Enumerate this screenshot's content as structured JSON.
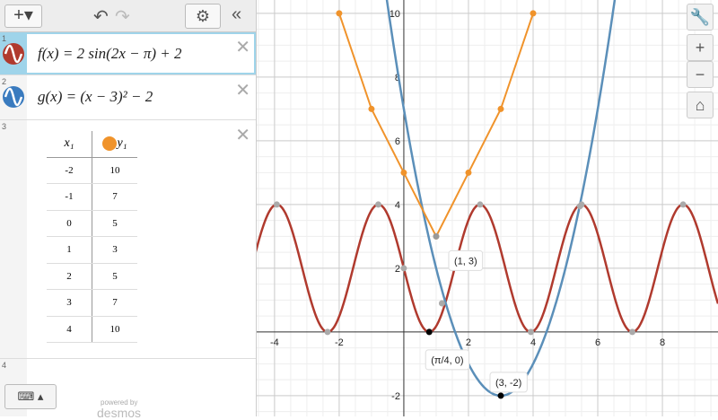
{
  "expressions": [
    {
      "index": "1",
      "text": "f(x) = 2 sin(2x − π) + 2"
    },
    {
      "index": "2",
      "text": "g(x) = (x − 3)² − 2"
    }
  ],
  "table": {
    "index": "3",
    "headers": [
      "x₁",
      "y₁"
    ],
    "x": [
      -2,
      -1,
      0,
      1,
      2,
      3,
      4
    ],
    "y": [
      10,
      7,
      5,
      3,
      5,
      7,
      10
    ],
    "color": "#f0932b"
  },
  "empty_index": "4",
  "branding": {
    "line1": "powered by",
    "line2": "desmos"
  },
  "graph": {
    "xlim": [
      -4.58,
      9.72
    ],
    "ylim": [
      -2.65,
      10.42
    ],
    "xticks": [
      -4,
      -2,
      2,
      4,
      6,
      8
    ],
    "yticks": [
      -2,
      2,
      4,
      6,
      8,
      10
    ],
    "minor_step": 0.5,
    "curves": [
      {
        "kind": "sine",
        "amplitude": 2,
        "frequency": 2,
        "phase": 3.14159,
        "offset": 2,
        "color": "#b03a2e"
      },
      {
        "kind": "parabola",
        "h": 3,
        "k": -2,
        "color": "#5b8fb9"
      }
    ],
    "gray_points": {
      "x": [
        -3.93,
        -2.36,
        -0.79,
        0.79,
        2.36,
        3.93,
        5.5,
        7.07,
        8.64,
        0,
        1.18,
        5.45
      ],
      "y": [
        4,
        0,
        4,
        0,
        4,
        0,
        4,
        0,
        4,
        2,
        0.9,
        3.95
      ]
    },
    "labeled_points": [
      {
        "label": "(1, 3)",
        "x": 1,
        "y": 3,
        "color": "#999999"
      },
      {
        "label": "(π/4, 0)",
        "x": 0.785,
        "y": 0,
        "color": "#000000"
      },
      {
        "label": "(3, -2)",
        "x": 3,
        "y": -2,
        "color": "#000000"
      }
    ]
  }
}
